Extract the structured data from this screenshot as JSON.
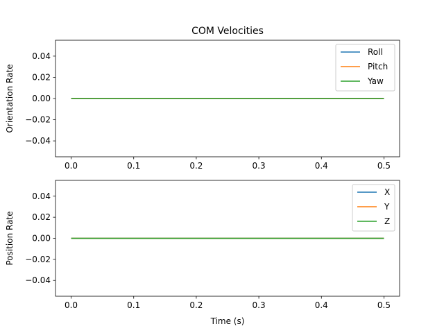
{
  "figure": {
    "title": "COM Velocities"
  },
  "chart_data": [
    {
      "type": "line",
      "title": "COM Velocities",
      "xlabel": "",
      "ylabel": "Orientation Rate",
      "xlim": [
        -0.025,
        0.525
      ],
      "ylim": [
        -0.055,
        0.055
      ],
      "xticks": [
        0.0,
        0.1,
        0.2,
        0.3,
        0.4,
        0.5
      ],
      "xtick_labels": [
        "0.0",
        "0.1",
        "0.2",
        "0.3",
        "0.4",
        "0.5"
      ],
      "yticks": [
        0.04,
        0.02,
        0.0,
        -0.02,
        -0.04
      ],
      "ytick_labels": [
        "0.04",
        "0.02",
        "0.00",
        "−0.02",
        "−0.04"
      ],
      "grid": false,
      "legend_position": "top-right",
      "x": [
        0.0,
        0.5
      ],
      "series": [
        {
          "name": "Roll",
          "color": "#1f77b4",
          "values": [
            0.0,
            0.0
          ]
        },
        {
          "name": "Pitch",
          "color": "#ff7f0e",
          "values": [
            0.0,
            0.0
          ]
        },
        {
          "name": "Yaw",
          "color": "#2ca02c",
          "values": [
            0.0,
            0.0
          ]
        }
      ]
    },
    {
      "type": "line",
      "title": "",
      "xlabel": "Time (s)",
      "ylabel": "Position Rate",
      "xlim": [
        -0.025,
        0.525
      ],
      "ylim": [
        -0.055,
        0.055
      ],
      "xticks": [
        0.0,
        0.1,
        0.2,
        0.3,
        0.4,
        0.5
      ],
      "xtick_labels": [
        "0.0",
        "0.1",
        "0.2",
        "0.3",
        "0.4",
        "0.5"
      ],
      "yticks": [
        0.04,
        0.02,
        0.0,
        -0.02,
        -0.04
      ],
      "ytick_labels": [
        "0.04",
        "0.02",
        "0.00",
        "−0.02",
        "−0.04"
      ],
      "grid": false,
      "legend_position": "top-right",
      "x": [
        0.0,
        0.5
      ],
      "series": [
        {
          "name": "X",
          "color": "#1f77b4",
          "values": [
            0.0,
            0.0
          ]
        },
        {
          "name": "Y",
          "color": "#ff7f0e",
          "values": [
            0.0,
            0.0
          ]
        },
        {
          "name": "Z",
          "color": "#2ca02c",
          "values": [
            0.0,
            0.0
          ]
        }
      ]
    }
  ]
}
